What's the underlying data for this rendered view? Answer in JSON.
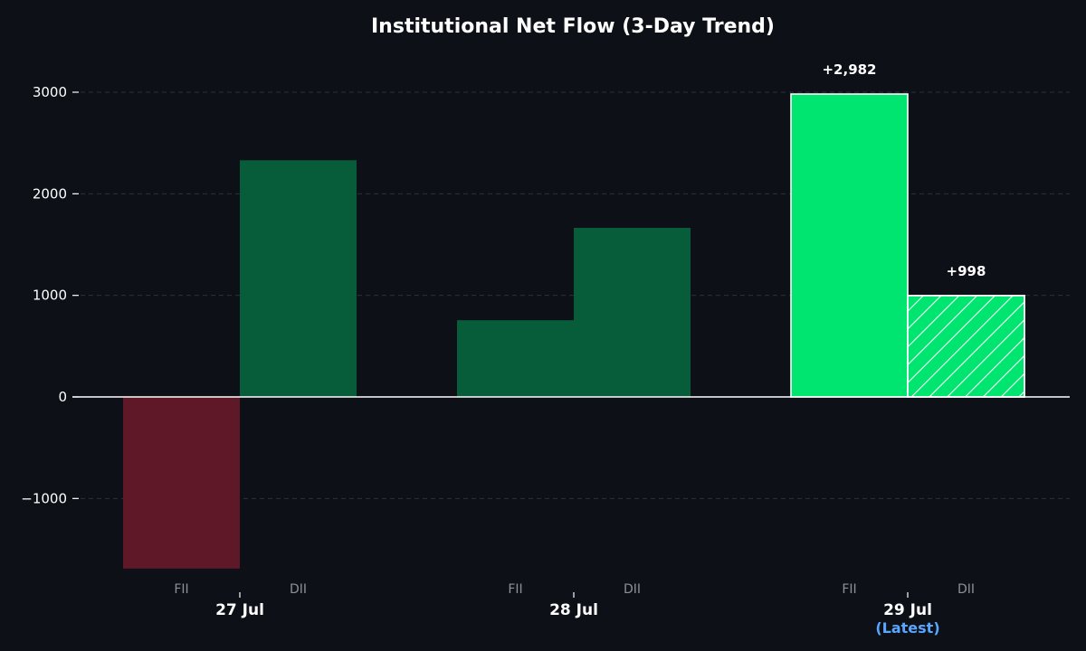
{
  "chart_data": {
    "type": "bar",
    "title": "Institutional Net Flow (3-Day Trend)",
    "categories": [
      "27 Jul",
      "28 Jul",
      "29 Jul"
    ],
    "latest_note": "(Latest)",
    "series_labels": [
      "FII",
      "DII"
    ],
    "series": [
      {
        "name": "FII",
        "values": [
          -1690,
          755,
          2982
        ]
      },
      {
        "name": "DII",
        "values": [
          2330,
          1665,
          998
        ]
      }
    ],
    "ylim": [
      -1700,
      3300
    ],
    "yticks": [
      3000,
      2000,
      1000,
      0,
      -1000
    ],
    "ytick_labels": [
      "3000",
      "2000",
      "1000",
      "0",
      "−1000"
    ],
    "data_labels": [
      {
        "series": "FII",
        "category": "29 Jul",
        "text": "+2,982"
      },
      {
        "series": "DII",
        "category": "29 Jul",
        "text": "+998"
      }
    ],
    "grid": true,
    "legend": "none",
    "colors": {
      "background": "#0d1017",
      "negative": "#5e1827",
      "positive_past": "#075c39",
      "positive_latest": "#00e56f",
      "grid": "#2c313a",
      "latest_text": "#58a6ff"
    }
  }
}
